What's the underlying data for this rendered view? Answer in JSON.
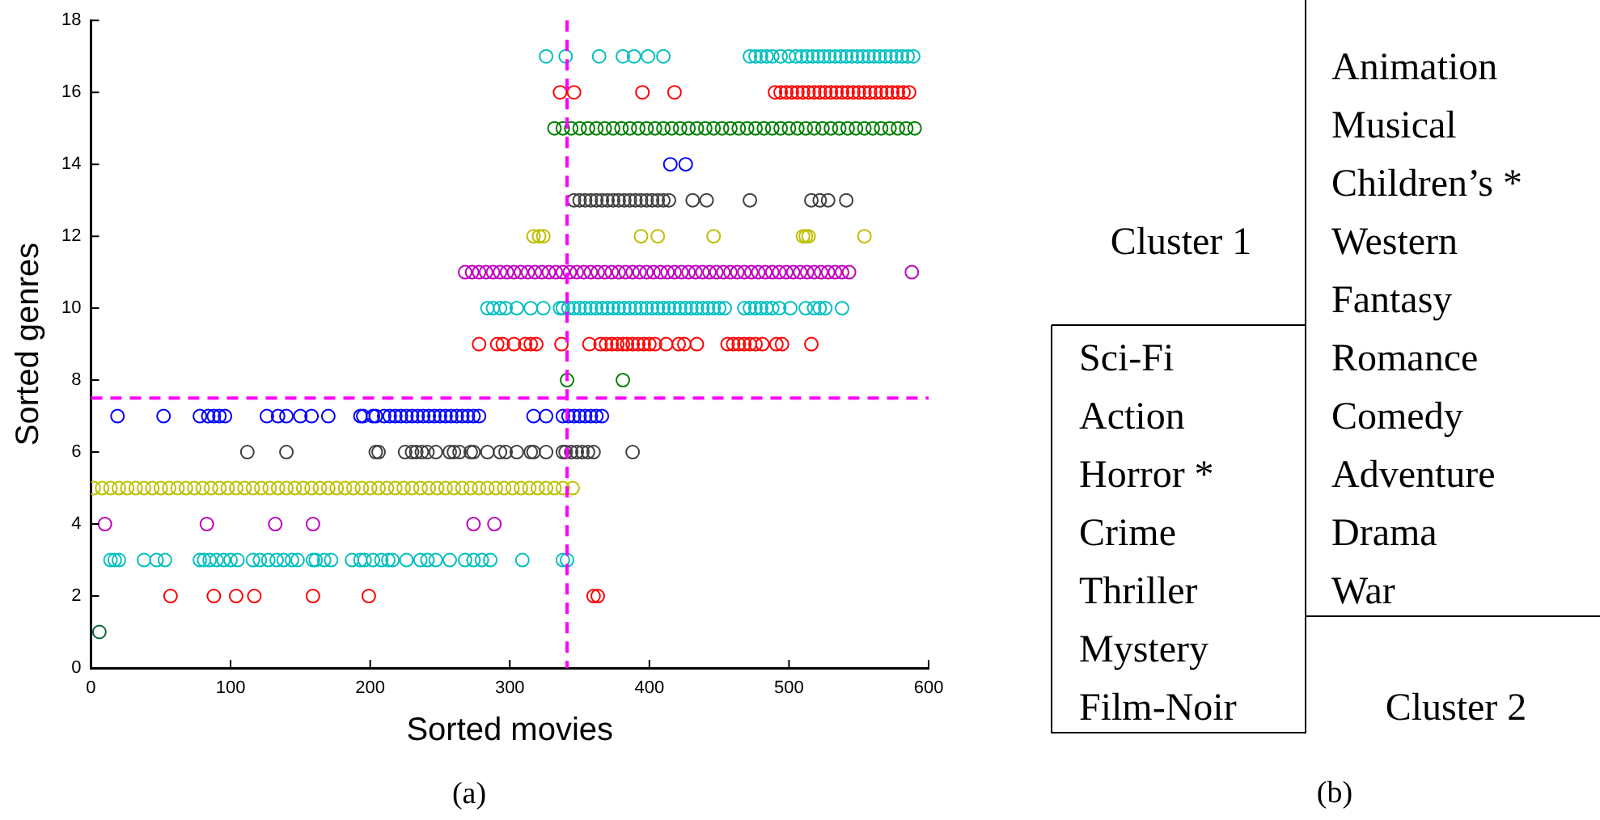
{
  "chart_data": [
    {
      "type": "scatter",
      "title": "(a)",
      "xlabel": "Sorted movies",
      "ylabel": "Sorted genres",
      "xlim": [
        0,
        600
      ],
      "xticks": [
        0,
        100,
        200,
        300,
        400,
        500,
        600
      ],
      "ylim": [
        0,
        18
      ],
      "yticks": [
        0,
        2,
        4,
        6,
        8,
        10,
        12,
        14,
        16,
        18
      ],
      "grid": false,
      "legend": false,
      "marker": "circle",
      "ref_lines": [
        {
          "axis": "x",
          "value": 341,
          "color": "#ff00ff",
          "line_style": "dashed"
        },
        {
          "axis": "y",
          "value": 7.5,
          "color": "#ff00ff",
          "line_style": "dashed"
        }
      ],
      "series": [
        {
          "color": "#006633",
          "x": [
            6
          ],
          "values": [
            1
          ]
        },
        {
          "color": "#ff0000",
          "x": [
            57,
            88,
            104,
            117,
            159,
            199,
            360,
            363
          ],
          "values": [
            2,
            2,
            2,
            2,
            2,
            2,
            2,
            2
          ]
        },
        {
          "color": "#00bfbf",
          "x": [
            14,
            17,
            20,
            38,
            47,
            53,
            78,
            81,
            85,
            90,
            95,
            100,
            105,
            116,
            121,
            127,
            133,
            138,
            144,
            148,
            159,
            161,
            167,
            172,
            187,
            193,
            196,
            202,
            208,
            213,
            216,
            226,
            236,
            241,
            247,
            257,
            268,
            274,
            280,
            286,
            309,
            338,
            341
          ],
          "values": [
            3,
            3,
            3,
            3,
            3,
            3,
            3,
            3,
            3,
            3,
            3,
            3,
            3,
            3,
            3,
            3,
            3,
            3,
            3,
            3,
            3,
            3,
            3,
            3,
            3,
            3,
            3,
            3,
            3,
            3,
            3,
            3,
            3,
            3,
            3,
            3,
            3,
            3,
            3,
            3,
            3,
            3,
            3
          ]
        },
        {
          "color": "#bf00bf",
          "x": [
            10,
            83,
            132,
            159,
            274,
            289
          ],
          "values": [
            4,
            4,
            4,
            4,
            4,
            4
          ]
        },
        {
          "color": "#bfbf00",
          "x": [
            2,
            8,
            14,
            20,
            26,
            32,
            38,
            44,
            50,
            56,
            62,
            68,
            74,
            80,
            86,
            92,
            98,
            104,
            110,
            116,
            122,
            128,
            134,
            140,
            146,
            152,
            158,
            164,
            170,
            176,
            182,
            188,
            194,
            200,
            206,
            212,
            218,
            224,
            230,
            236,
            242,
            248,
            254,
            260,
            266,
            272,
            278,
            284,
            290,
            296,
            302,
            308,
            314,
            320,
            326,
            332,
            338,
            345
          ],
          "values": [
            5,
            5,
            5,
            5,
            5,
            5,
            5,
            5,
            5,
            5,
            5,
            5,
            5,
            5,
            5,
            5,
            5,
            5,
            5,
            5,
            5,
            5,
            5,
            5,
            5,
            5,
            5,
            5,
            5,
            5,
            5,
            5,
            5,
            5,
            5,
            5,
            5,
            5,
            5,
            5,
            5,
            5,
            5,
            5,
            5,
            5,
            5,
            5,
            5,
            5,
            5,
            5,
            5,
            5,
            5,
            5,
            5,
            5
          ]
        },
        {
          "color": "#404040",
          "x": [
            112,
            140,
            204,
            206,
            225,
            230,
            233,
            237,
            241,
            247,
            257,
            260,
            264,
            272,
            274,
            284,
            293,
            297,
            305,
            315,
            317,
            326,
            338,
            340,
            344,
            348,
            352,
            356,
            360,
            388
          ],
          "values": [
            6,
            6,
            6,
            6,
            6,
            6,
            6,
            6,
            6,
            6,
            6,
            6,
            6,
            6,
            6,
            6,
            6,
            6,
            6,
            6,
            6,
            6,
            6,
            6,
            6,
            6,
            6,
            6,
            6,
            6
          ]
        },
        {
          "color": "#0000ff",
          "x": [
            19,
            52,
            78,
            84,
            88,
            92,
            96,
            126,
            134,
            140,
            150,
            158,
            170,
            193,
            195,
            202,
            204,
            210,
            214,
            218,
            222,
            226,
            230,
            234,
            238,
            242,
            246,
            250,
            254,
            258,
            262,
            266,
            270,
            274,
            278,
            317,
            326,
            338,
            342,
            346,
            350,
            354,
            358,
            362,
            366
          ],
          "values": [
            7,
            7,
            7,
            7,
            7,
            7,
            7,
            7,
            7,
            7,
            7,
            7,
            7,
            7,
            7,
            7,
            7,
            7,
            7,
            7,
            7,
            7,
            7,
            7,
            7,
            7,
            7,
            7,
            7,
            7,
            7,
            7,
            7,
            7,
            7,
            7,
            7,
            7,
            7,
            7,
            7,
            7,
            7,
            7,
            7
          ]
        },
        {
          "color": "#008000",
          "x": [
            341,
            381
          ],
          "values": [
            8,
            8
          ]
        },
        {
          "color": "#ff0000",
          "x": [
            278,
            291,
            295,
            303,
            311,
            315,
            319,
            337,
            357,
            365,
            369,
            373,
            377,
            381,
            384,
            388,
            392,
            396,
            400,
            404,
            412,
            421,
            425,
            434,
            456,
            460,
            464,
            468,
            472,
            476,
            481,
            491,
            495,
            516
          ],
          "values": [
            9,
            9,
            9,
            9,
            9,
            9,
            9,
            9,
            9,
            9,
            9,
            9,
            9,
            9,
            9,
            9,
            9,
            9,
            9,
            9,
            9,
            9,
            9,
            9,
            9,
            9,
            9,
            9,
            9,
            9,
            9,
            9,
            9,
            9
          ]
        },
        {
          "color": "#00bfbf",
          "x": [
            284,
            288,
            293,
            297,
            305,
            315,
            324,
            336,
            338,
            342,
            346,
            350,
            354,
            358,
            362,
            366,
            370,
            374,
            378,
            382,
            386,
            390,
            394,
            398,
            402,
            406,
            410,
            414,
            418,
            422,
            426,
            430,
            434,
            438,
            442,
            446,
            450,
            454,
            468,
            472,
            476,
            480,
            484,
            488,
            493,
            501,
            512,
            518,
            522,
            526,
            538
          ],
          "values": [
            10,
            10,
            10,
            10,
            10,
            10,
            10,
            10,
            10,
            10,
            10,
            10,
            10,
            10,
            10,
            10,
            10,
            10,
            10,
            10,
            10,
            10,
            10,
            10,
            10,
            10,
            10,
            10,
            10,
            10,
            10,
            10,
            10,
            10,
            10,
            10,
            10,
            10,
            10,
            10,
            10,
            10,
            10,
            10,
            10,
            10,
            10,
            10,
            10,
            10,
            10
          ]
        },
        {
          "color": "#bf00bf",
          "x": [
            268,
            273,
            278,
            283,
            288,
            293,
            298,
            303,
            308,
            313,
            318,
            323,
            328,
            333,
            338,
            343,
            348,
            353,
            358,
            363,
            368,
            373,
            378,
            383,
            388,
            393,
            398,
            403,
            408,
            413,
            418,
            423,
            428,
            433,
            438,
            443,
            448,
            453,
            458,
            463,
            468,
            473,
            478,
            483,
            488,
            493,
            498,
            503,
            508,
            513,
            518,
            523,
            528,
            533,
            538,
            543,
            588
          ],
          "values": [
            11,
            11,
            11,
            11,
            11,
            11,
            11,
            11,
            11,
            11,
            11,
            11,
            11,
            11,
            11,
            11,
            11,
            11,
            11,
            11,
            11,
            11,
            11,
            11,
            11,
            11,
            11,
            11,
            11,
            11,
            11,
            11,
            11,
            11,
            11,
            11,
            11,
            11,
            11,
            11,
            11,
            11,
            11,
            11,
            11,
            11,
            11,
            11,
            11,
            11,
            11,
            11,
            11,
            11,
            11,
            11,
            11
          ]
        },
        {
          "color": "#bfbf00",
          "x": [
            317,
            321,
            324,
            394,
            406,
            446,
            510,
            512,
            514,
            554
          ],
          "values": [
            12,
            12,
            12,
            12,
            12,
            12,
            12,
            12,
            12,
            12
          ]
        },
        {
          "color": "#404040",
          "x": [
            346,
            350,
            354,
            358,
            362,
            366,
            370,
            374,
            378,
            382,
            386,
            390,
            394,
            398,
            402,
            406,
            410,
            414,
            431,
            441,
            472,
            516,
            522,
            528,
            541
          ],
          "values": [
            13,
            13,
            13,
            13,
            13,
            13,
            13,
            13,
            13,
            13,
            13,
            13,
            13,
            13,
            13,
            13,
            13,
            13,
            13,
            13,
            13,
            13,
            13,
            13,
            13
          ]
        },
        {
          "color": "#0000ff",
          "x": [
            415,
            426
          ],
          "values": [
            14,
            14
          ]
        },
        {
          "color": "#008000",
          "x": [
            332,
            338,
            344,
            350,
            356,
            362,
            368,
            374,
            380,
            386,
            392,
            398,
            404,
            410,
            416,
            422,
            428,
            434,
            440,
            446,
            452,
            458,
            464,
            470,
            476,
            482,
            488,
            494,
            500,
            506,
            512,
            518,
            524,
            530,
            536,
            542,
            548,
            554,
            560,
            566,
            572,
            578,
            584,
            590
          ],
          "values": [
            15,
            15,
            15,
            15,
            15,
            15,
            15,
            15,
            15,
            15,
            15,
            15,
            15,
            15,
            15,
            15,
            15,
            15,
            15,
            15,
            15,
            15,
            15,
            15,
            15,
            15,
            15,
            15,
            15,
            15,
            15,
            15,
            15,
            15,
            15,
            15,
            15,
            15,
            15,
            15,
            15,
            15,
            15,
            15
          ]
        },
        {
          "color": "#ff0000",
          "x": [
            336,
            346,
            395,
            418,
            490,
            494,
            498,
            502,
            506,
            510,
            514,
            518,
            522,
            526,
            530,
            534,
            538,
            542,
            546,
            550,
            554,
            558,
            562,
            566,
            570,
            574,
            578,
            582,
            586
          ],
          "values": [
            16,
            16,
            16,
            16,
            16,
            16,
            16,
            16,
            16,
            16,
            16,
            16,
            16,
            16,
            16,
            16,
            16,
            16,
            16,
            16,
            16,
            16,
            16,
            16,
            16,
            16,
            16,
            16,
            16
          ]
        },
        {
          "color": "#00bfbf",
          "x": [
            326,
            340,
            364,
            381,
            389,
            399,
            410,
            472,
            476,
            480,
            484,
            488,
            494,
            500,
            505,
            509,
            513,
            517,
            521,
            525,
            529,
            533,
            537,
            541,
            545,
            549,
            553,
            557,
            561,
            565,
            569,
            573,
            577,
            581,
            585,
            589
          ],
          "values": [
            17,
            17,
            17,
            17,
            17,
            17,
            17,
            17,
            17,
            17,
            17,
            17,
            17,
            17,
            17,
            17,
            17,
            17,
            17,
            17,
            17,
            17,
            17,
            17,
            17,
            17,
            17,
            17,
            17,
            17,
            17,
            17,
            17,
            17,
            17,
            17
          ]
        }
      ]
    },
    {
      "type": "other",
      "title": "(b)",
      "categories": [
        "Animation",
        "Musical",
        "Children’s *",
        "Western",
        "Fantasy",
        "Romance",
        "Comedy",
        "Adventure",
        "Drama",
        "War"
      ],
      "y_categories": [
        "Sci-Fi",
        "Action",
        "Horror *",
        "Crime",
        "Thriller",
        "Mystery",
        "Film-Noir"
      ],
      "annotations": [
        "Cluster 1",
        "Cluster 2"
      ]
    }
  ]
}
